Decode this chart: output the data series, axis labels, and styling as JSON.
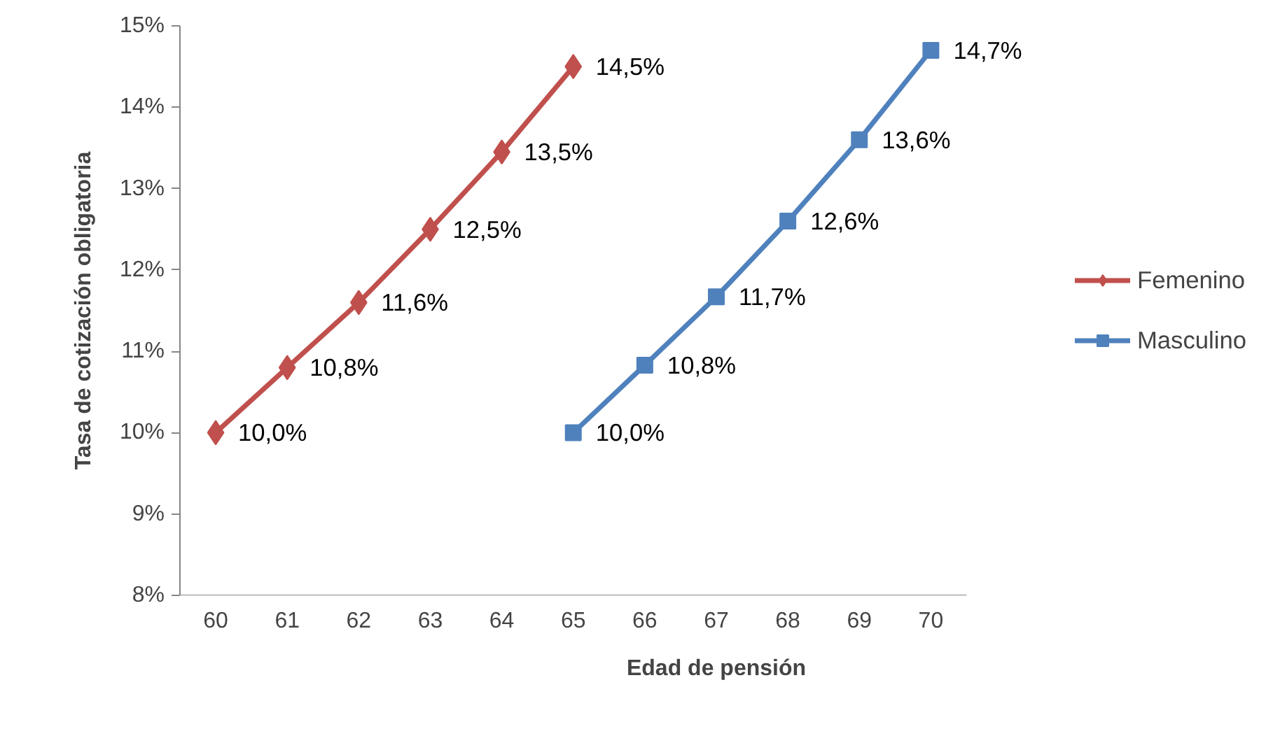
{
  "chart_data": {
    "type": "line",
    "xlabel": "Edad de pensión",
    "ylabel": "Tasa de cotización obligatoria",
    "categories": [
      "60",
      "61",
      "62",
      "63",
      "64",
      "65",
      "66",
      "67",
      "68",
      "69",
      "70"
    ],
    "ylim": [
      8,
      15
    ],
    "yticks": [
      {
        "value": 8,
        "label": "8%"
      },
      {
        "value": 9,
        "label": "9%"
      },
      {
        "value": 10,
        "label": "10%"
      },
      {
        "value": 11,
        "label": "11%"
      },
      {
        "value": 12,
        "label": "12%"
      },
      {
        "value": 13,
        "label": "13%"
      },
      {
        "value": 14,
        "label": "14%"
      },
      {
        "value": 15,
        "label": "15%"
      }
    ],
    "grid": false,
    "legend": "right",
    "line_style": "solid",
    "series": [
      {
        "name": "Femenino",
        "color": "#c0504d",
        "marker": "diamond",
        "values": [
          10.0,
          10.8,
          11.6,
          12.5,
          13.45,
          14.5,
          null,
          null,
          null,
          null,
          null
        ],
        "value_labels": [
          "10,0%",
          "10,8%",
          "11,6%",
          "12,5%",
          "13,5%",
          "14,5%",
          null,
          null,
          null,
          null,
          null
        ]
      },
      {
        "name": "Masculino",
        "color": "#4f81bd",
        "marker": "square",
        "values": [
          null,
          null,
          null,
          null,
          null,
          10.0,
          10.83,
          11.67,
          12.6,
          13.6,
          14.7
        ],
        "value_labels": [
          null,
          null,
          null,
          null,
          null,
          "10,0%",
          "10,8%",
          "11,7%",
          "12,6%",
          "13,6%",
          "14,7%"
        ]
      }
    ]
  }
}
